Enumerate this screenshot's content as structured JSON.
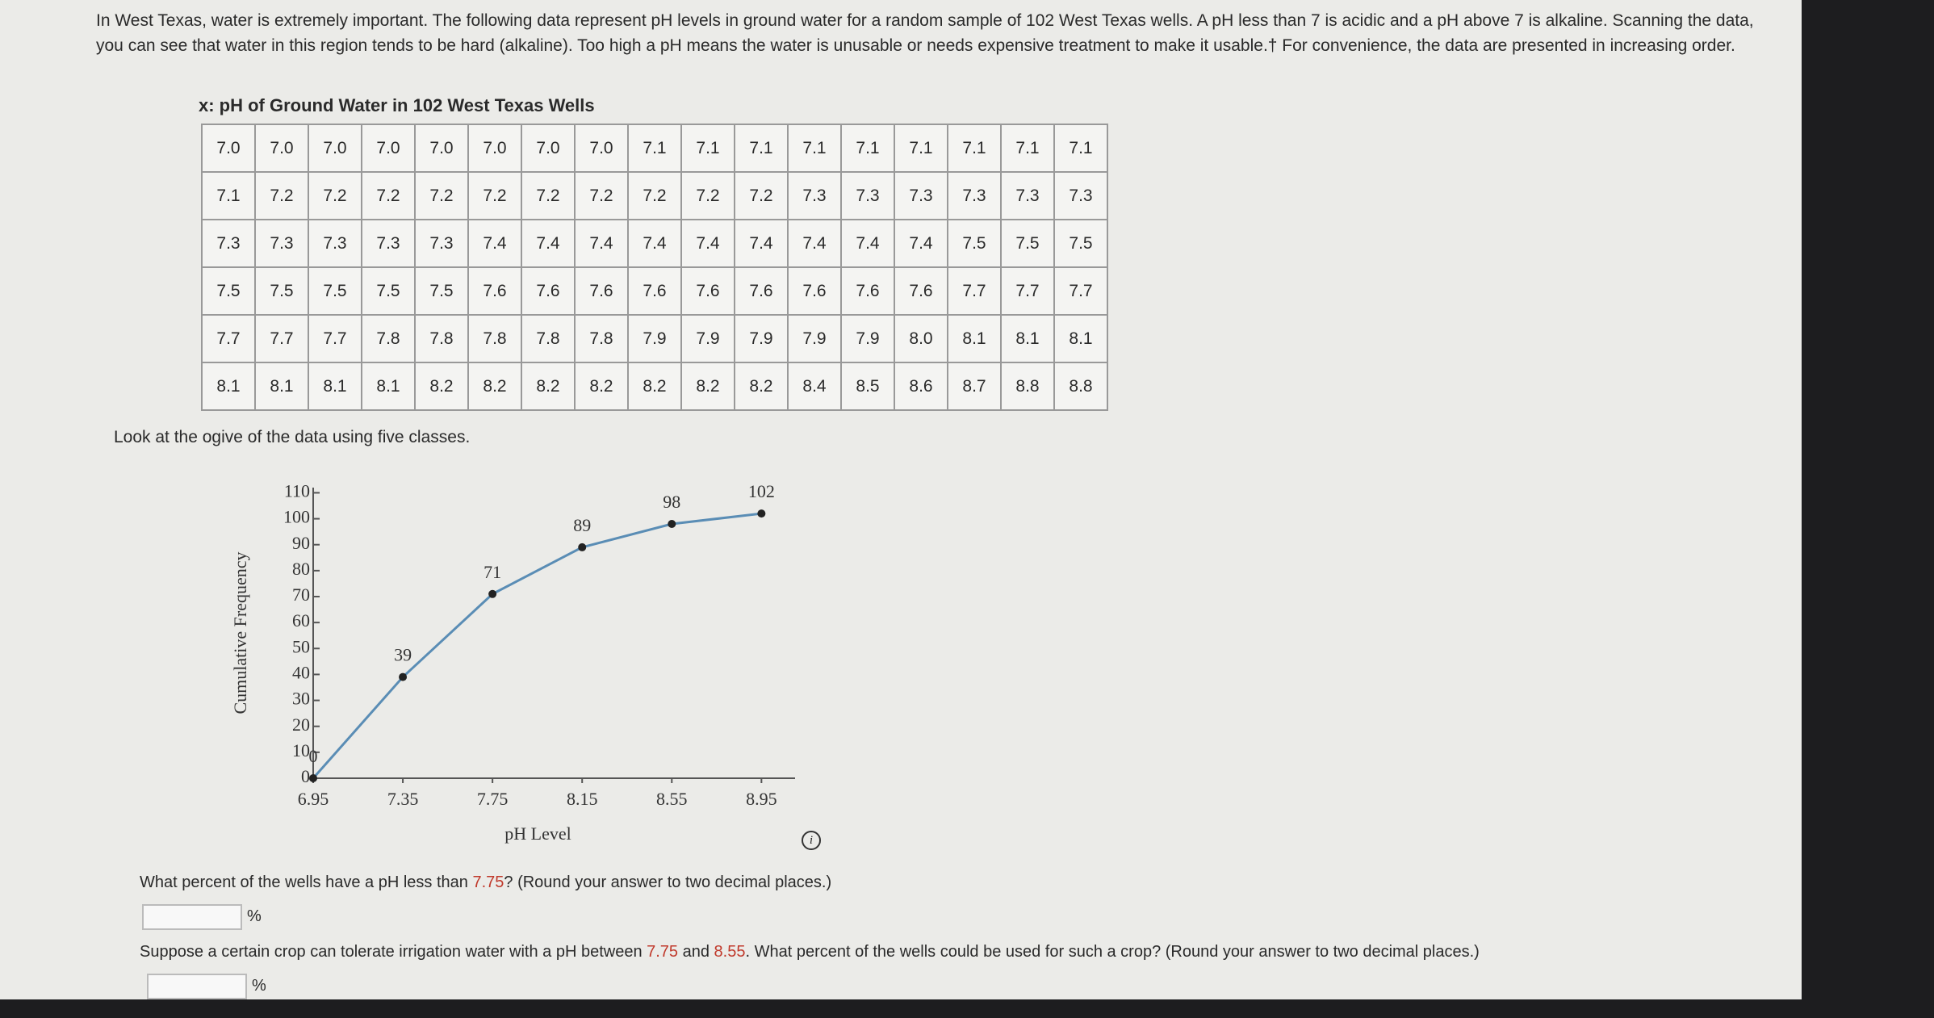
{
  "intro": "In West Texas, water is extremely important. The following data represent pH levels in ground water for a random sample of 102 West Texas wells. A pH less than 7 is acidic and a pH above 7 is alkaline. Scanning the data, you can see that water in this region tends to be hard (alkaline). Too high a pH means the water is unusable or needs expensive treatment to make it usable.† For convenience, the data are presented in increasing order.",
  "table": {
    "title": "x: pH of Ground Water in 102 West Texas Wells",
    "rows": [
      [
        "7.0",
        "7.0",
        "7.0",
        "7.0",
        "7.0",
        "7.0",
        "7.0",
        "7.0",
        "7.1",
        "7.1",
        "7.1",
        "7.1",
        "7.1",
        "7.1",
        "7.1",
        "7.1",
        "7.1"
      ],
      [
        "7.1",
        "7.2",
        "7.2",
        "7.2",
        "7.2",
        "7.2",
        "7.2",
        "7.2",
        "7.2",
        "7.2",
        "7.2",
        "7.3",
        "7.3",
        "7.3",
        "7.3",
        "7.3",
        "7.3"
      ],
      [
        "7.3",
        "7.3",
        "7.3",
        "7.3",
        "7.3",
        "7.4",
        "7.4",
        "7.4",
        "7.4",
        "7.4",
        "7.4",
        "7.4",
        "7.4",
        "7.4",
        "7.5",
        "7.5",
        "7.5"
      ],
      [
        "7.5",
        "7.5",
        "7.5",
        "7.5",
        "7.5",
        "7.6",
        "7.6",
        "7.6",
        "7.6",
        "7.6",
        "7.6",
        "7.6",
        "7.6",
        "7.6",
        "7.7",
        "7.7",
        "7.7"
      ],
      [
        "7.7",
        "7.7",
        "7.7",
        "7.8",
        "7.8",
        "7.8",
        "7.8",
        "7.8",
        "7.9",
        "7.9",
        "7.9",
        "7.9",
        "7.9",
        "8.0",
        "8.1",
        "8.1",
        "8.1"
      ],
      [
        "8.1",
        "8.1",
        "8.1",
        "8.1",
        "8.2",
        "8.2",
        "8.2",
        "8.2",
        "8.2",
        "8.2",
        "8.2",
        "8.4",
        "8.5",
        "8.6",
        "8.7",
        "8.8",
        "8.8"
      ]
    ]
  },
  "prompt": "Look at the ogive of the data using five classes.",
  "chart_data": {
    "type": "line",
    "x_label": "pH Level",
    "y_label": "Cumulative Frequency",
    "x": [
      6.95,
      7.35,
      7.75,
      8.15,
      8.55,
      8.95
    ],
    "values": [
      0,
      39,
      71,
      89,
      98,
      102
    ],
    "color": "#5a8db5",
    "marker_color": "#222222",
    "xlim": [
      6.95,
      9.1
    ],
    "xticks": [
      6.95,
      7.35,
      7.75,
      8.15,
      8.55,
      8.95
    ],
    "ylim": [
      0,
      112
    ],
    "yticks": [
      0,
      10,
      20,
      30,
      40,
      50,
      60,
      70,
      80,
      90,
      100,
      110
    ],
    "grid": false
  },
  "questions": [
    {
      "parts": [
        "What percent of the wells have a pH less than ",
        "7.75",
        "? (Round your answer to two decimal places.)"
      ],
      "unit": "%"
    },
    {
      "parts": [
        "Suppose a certain crop can tolerate irrigation water with a pH between ",
        "7.75",
        " and ",
        "8.55",
        ". What percent of the wells could be used for such a crop? (Round your answer to two decimal places.)"
      ],
      "unit": "%"
    }
  ],
  "highlight_color": "#c0392b"
}
